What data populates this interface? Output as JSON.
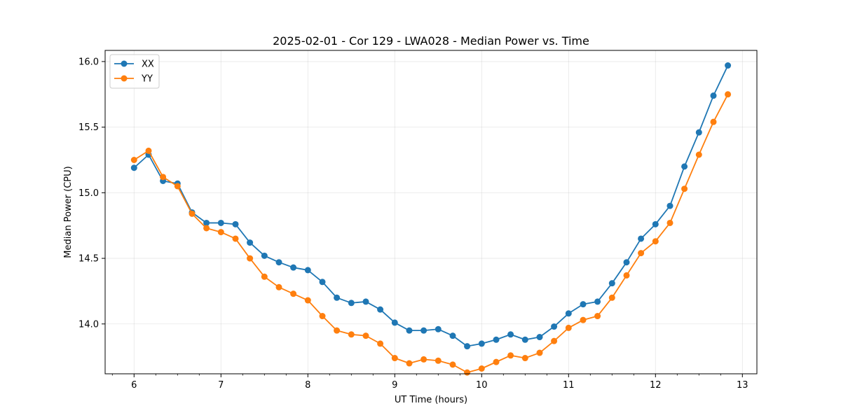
{
  "chart_data": {
    "type": "line",
    "title": "2025-02-01 - Cor 129 - LWA028 - Median Power vs. Time",
    "xlabel": "UT Time (hours)",
    "ylabel": "Median Power (CPU)",
    "xlim": [
      5.667,
      13.167
    ],
    "ylim": [
      13.62,
      16.085
    ],
    "xticks": [
      6,
      7,
      8,
      9,
      10,
      11,
      12,
      13
    ],
    "yticks": [
      14.0,
      14.5,
      15.0,
      15.5,
      16.0
    ],
    "xtick_labels": [
      "6",
      "7",
      "8",
      "9",
      "10",
      "11",
      "12",
      "13"
    ],
    "ytick_labels": [
      "14.0",
      "14.5",
      "15.0",
      "15.5",
      "16.0"
    ],
    "grid": true,
    "legend_position": "upper-left",
    "x": [
      6.0,
      6.167,
      6.333,
      6.5,
      6.667,
      6.833,
      7.0,
      7.167,
      7.333,
      7.5,
      7.667,
      7.833,
      8.0,
      8.167,
      8.333,
      8.5,
      8.667,
      8.833,
      9.0,
      9.167,
      9.333,
      9.5,
      9.667,
      9.833,
      10.0,
      10.167,
      10.333,
      10.5,
      10.667,
      10.833,
      11.0,
      11.167,
      11.333,
      11.5,
      11.667,
      11.833,
      12.0,
      12.167,
      12.333,
      12.5,
      12.667,
      12.833
    ],
    "series": [
      {
        "name": "XX",
        "color": "#1f77b4",
        "values": [
          15.19,
          15.29,
          15.09,
          15.07,
          14.85,
          14.77,
          14.77,
          14.76,
          14.62,
          14.52,
          14.47,
          14.43,
          14.41,
          14.32,
          14.2,
          14.16,
          14.17,
          14.11,
          14.01,
          13.95,
          13.95,
          13.96,
          13.91,
          13.83,
          13.85,
          13.88,
          13.92,
          13.88,
          13.9,
          13.98,
          14.08,
          14.15,
          14.17,
          14.31,
          14.47,
          14.65,
          14.76,
          14.9,
          15.2,
          15.46,
          15.74,
          15.97
        ]
      },
      {
        "name": "YY",
        "color": "#ff7f0e",
        "values": [
          15.25,
          15.32,
          15.12,
          15.05,
          14.84,
          14.73,
          14.7,
          14.65,
          14.5,
          14.36,
          14.28,
          14.23,
          14.18,
          14.06,
          13.95,
          13.92,
          13.91,
          13.85,
          13.74,
          13.7,
          13.73,
          13.72,
          13.69,
          13.63,
          13.66,
          13.71,
          13.76,
          13.74,
          13.78,
          13.87,
          13.97,
          14.03,
          14.06,
          14.2,
          14.37,
          14.54,
          14.63,
          14.77,
          15.03,
          15.29,
          15.54,
          15.75
        ]
      }
    ]
  }
}
